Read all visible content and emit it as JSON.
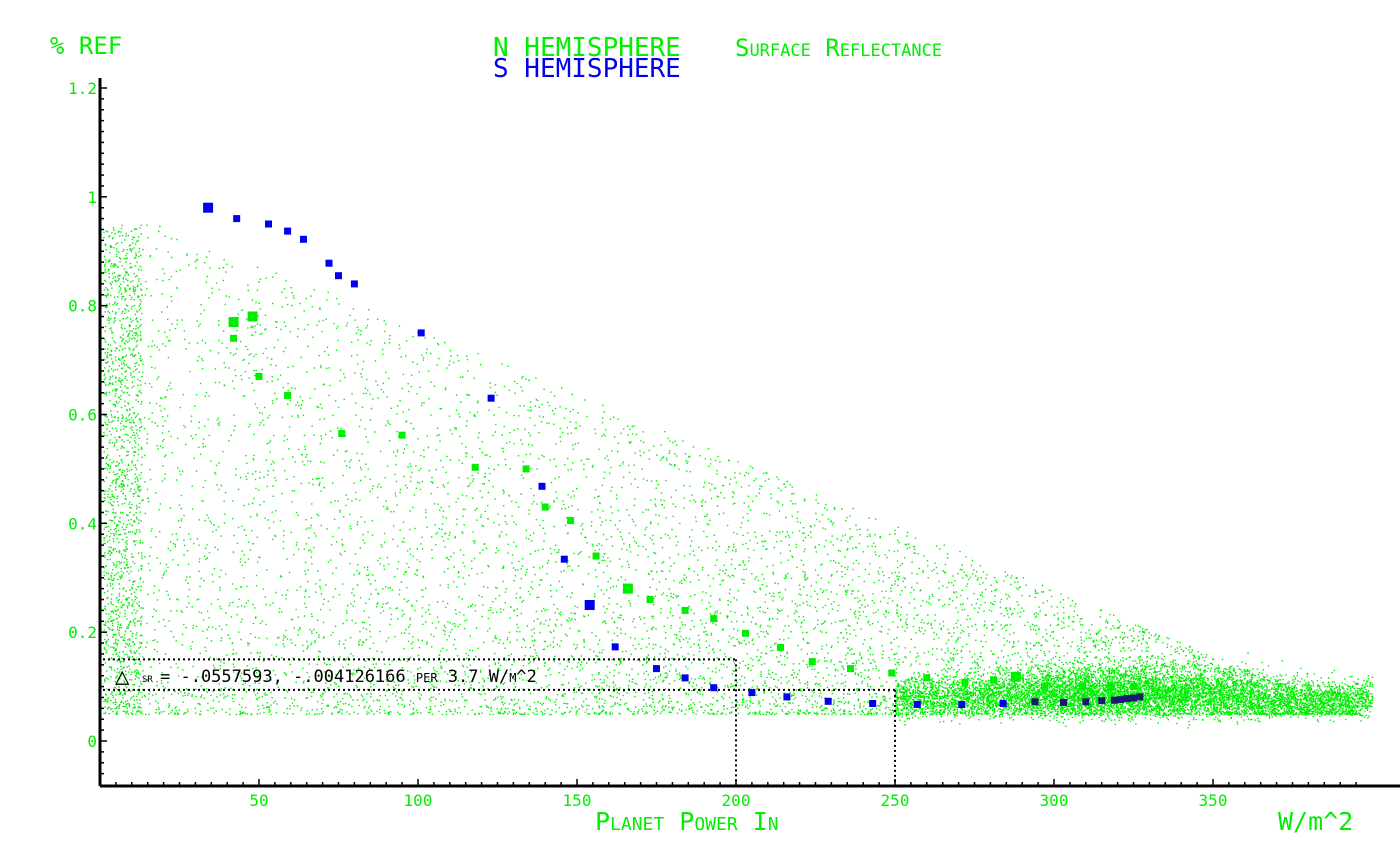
{
  "chart_data": {
    "type": "scatter",
    "title_line1_n": "N HEMISPHERE",
    "title_line1_rest": "Surface Reflectance",
    "title_line2_s": "S HEMISPHERE",
    "ylabel": "% REF",
    "xlabel": "Planet Power In",
    "xunit": "W/m^2",
    "xlim": [
      0,
      400
    ],
    "ylim": [
      -0.08,
      1.22
    ],
    "xticks": [
      50,
      100,
      150,
      200,
      250,
      300,
      350
    ],
    "yticks": [
      0,
      0.2,
      0.4,
      0.6,
      0.8,
      1,
      1.2
    ],
    "ytick_labels": [
      "0",
      "0.2",
      "0.4",
      "0.6",
      "0.8",
      "1",
      "1.2"
    ],
    "annotation": {
      "text_delta": "sr",
      "text": " = -.0557593, -.004126166 per 3.7 W/m^2",
      "box_x": [
        0,
        200
      ],
      "box_y": [
        0.094,
        0.15
      ],
      "marker_x": [
        200,
        250
      ]
    },
    "colors": {
      "north": "#00ee00",
      "south": "#0000ee",
      "axis": "#000000",
      "dense": "#1a1a6e"
    },
    "series": [
      {
        "name": "N HEMISPHERE",
        "color": "#00ee00",
        "points": [
          [
            42,
            0.77
          ],
          [
            48,
            0.78
          ],
          [
            42,
            0.74
          ],
          [
            50,
            0.67
          ],
          [
            59,
            0.635
          ],
          [
            76,
            0.565
          ],
          [
            95,
            0.562
          ],
          [
            118,
            0.503
          ],
          [
            134,
            0.5
          ],
          [
            140,
            0.43
          ],
          [
            148,
            0.405
          ],
          [
            156,
            0.34
          ],
          [
            166,
            0.28
          ],
          [
            173,
            0.26
          ],
          [
            184,
            0.24
          ],
          [
            193,
            0.225
          ],
          [
            203,
            0.198
          ],
          [
            214,
            0.172
          ],
          [
            224,
            0.146
          ],
          [
            236,
            0.133
          ],
          [
            249,
            0.125
          ],
          [
            260,
            0.116
          ],
          [
            272,
            0.108
          ],
          [
            281,
            0.112
          ],
          [
            288,
            0.118
          ],
          [
            297,
            0.1
          ],
          [
            309,
            0.1
          ],
          [
            318,
            0.1
          ],
          [
            325,
            0.1
          ]
        ]
      },
      {
        "name": "S HEMISPHERE",
        "color": "#0000ee",
        "points": [
          [
            34,
            0.98
          ],
          [
            43,
            0.96
          ],
          [
            53,
            0.95
          ],
          [
            59,
            0.937
          ],
          [
            64,
            0.922
          ],
          [
            72,
            0.878
          ],
          [
            75,
            0.855
          ],
          [
            80,
            0.84
          ],
          [
            101,
            0.75
          ],
          [
            123,
            0.63
          ],
          [
            139,
            0.468
          ],
          [
            146,
            0.334
          ],
          [
            154,
            0.25
          ],
          [
            162,
            0.173
          ],
          [
            175,
            0.133
          ],
          [
            184,
            0.116
          ],
          [
            193,
            0.098
          ],
          [
            205,
            0.089
          ],
          [
            216,
            0.081
          ],
          [
            229,
            0.073
          ],
          [
            243,
            0.069
          ],
          [
            257,
            0.067
          ],
          [
            271,
            0.067
          ],
          [
            284,
            0.069
          ],
          [
            294,
            0.072
          ],
          [
            303,
            0.071
          ],
          [
            310,
            0.072
          ],
          [
            315,
            0.074
          ],
          [
            319,
            0.075
          ],
          [
            321,
            0.076
          ],
          [
            323,
            0.078
          ],
          [
            325,
            0.079
          ],
          [
            327,
            0.081
          ]
        ]
      }
    ]
  }
}
